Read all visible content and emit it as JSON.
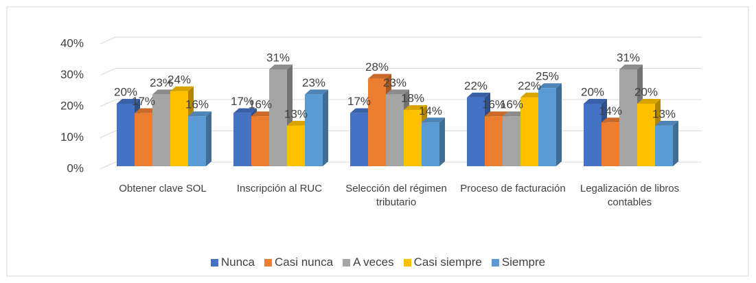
{
  "chart_data": {
    "type": "bar3d",
    "categories": [
      "Obtener clave SOL",
      "Inscripción al RUC",
      "Selección del régimen tributario",
      "Proceso de facturación",
      "Legalización de libros contables"
    ],
    "series": [
      {
        "name": "Nunca",
        "color": "#4472c4",
        "values": [
          20,
          17,
          17,
          22,
          20
        ],
        "value_labels": [
          "20%",
          "17%",
          "17%",
          "22%",
          "20%"
        ]
      },
      {
        "name": "Casi nunca",
        "color": "#ed7d31",
        "values": [
          17,
          16,
          28,
          16,
          14
        ],
        "value_labels": [
          "17%",
          "16%",
          "28%",
          "16%",
          "14%"
        ]
      },
      {
        "name": "A veces",
        "color": "#a5a5a5",
        "values": [
          23,
          31,
          23,
          16,
          31
        ],
        "value_labels": [
          "23%",
          "31%",
          "23%",
          "16%",
          "31%"
        ]
      },
      {
        "name": "Casi siempre",
        "color": "#ffc000",
        "values": [
          24,
          13,
          18,
          22,
          20
        ],
        "value_labels": [
          "24%",
          "13%",
          "18%",
          "22%",
          "20%"
        ]
      },
      {
        "name": "Siempre",
        "color": "#5b9bd5",
        "values": [
          16,
          23,
          14,
          25,
          13
        ],
        "value_labels": [
          "16%",
          "23%",
          "14%",
          "25%",
          "13%"
        ]
      }
    ],
    "ylim": [
      0,
      40
    ],
    "yticks": [
      {
        "value": 0,
        "label": "0%"
      },
      {
        "value": 10,
        "label": "10%"
      },
      {
        "value": 20,
        "label": "20%"
      },
      {
        "value": 30,
        "label": "30%"
      },
      {
        "value": 40,
        "label": "40%"
      }
    ],
    "grid": true,
    "legend": "bottom"
  }
}
